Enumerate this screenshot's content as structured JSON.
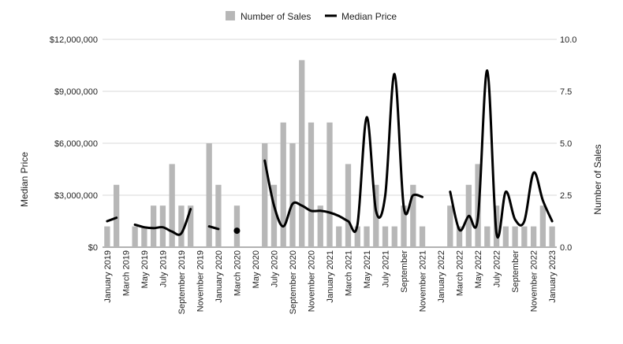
{
  "chart_data": {
    "type": "bar+line",
    "legend": {
      "placement": "top-center",
      "items": [
        {
          "label": "Number of Sales",
          "color": "#b7b7b7",
          "kind": "bar"
        },
        {
          "label": "Median Price",
          "color": "#000000",
          "kind": "line"
        }
      ]
    },
    "y_left": {
      "label": "Median Price",
      "range": [
        0,
        12000000
      ],
      "ticks": [
        0,
        3000000,
        6000000,
        9000000,
        12000000
      ],
      "tick_labels": [
        "$0",
        "$3,000,000",
        "$6,000,000",
        "$9,000,000",
        "$12,000,000"
      ]
    },
    "y_right": {
      "label": "Number of Sales",
      "range": [
        0,
        10
      ],
      "ticks": [
        0,
        2.5,
        5,
        7.5,
        10
      ],
      "tick_labels": [
        "0.0",
        "2.5",
        "5.0",
        "7.5",
        "10.0"
      ]
    },
    "grid": true,
    "categories": [
      "2019-01",
      "2019-02",
      "2019-03",
      "2019-04",
      "2019-05",
      "2019-06",
      "2019-07",
      "2019-08",
      "2019-09",
      "2019-10",
      "2019-11",
      "2019-12",
      "2020-01",
      "2020-02",
      "2020-03",
      "2020-04",
      "2020-05",
      "2020-06",
      "2020-07",
      "2020-08",
      "2020-09",
      "2020-10",
      "2020-11",
      "2020-12",
      "2021-01",
      "2021-02",
      "2021-03",
      "2021-04",
      "2021-05",
      "2021-06",
      "2021-07",
      "2021-08",
      "2021-09",
      "2021-10",
      "2021-11",
      "2021-12",
      "2022-01",
      "2022-02",
      "2022-03",
      "2022-04",
      "2022-05",
      "2022-06",
      "2022-07",
      "2022-08",
      "2022-09",
      "2022-10",
      "2022-11",
      "2022-12",
      "2023-01"
    ],
    "x_tick_labels": [
      "January 2019",
      "March 2019",
      "May 2019",
      "July 2019",
      "September 2019",
      "November 2019",
      "January 2020",
      "March 2020",
      "May 2020",
      "July 2020",
      "September 2020",
      "November 2020",
      "January 2021",
      "March 2021",
      "May 2021",
      "July 2021",
      "September",
      "November 2021",
      "January 2022",
      "March 2022",
      "May 2022",
      "July 2022",
      "September",
      "November 2022",
      "January 2023"
    ],
    "series": [
      {
        "name": "Number of Sales",
        "axis": "right",
        "type": "bar",
        "values": [
          1,
          3,
          0,
          1,
          1,
          2,
          2,
          4,
          2,
          2,
          0,
          5,
          3,
          0,
          2,
          0,
          0,
          5,
          3,
          6,
          5,
          9,
          6,
          2,
          6,
          1,
          4,
          1,
          1,
          3,
          1,
          1,
          2,
          3,
          1,
          0,
          0,
          2,
          1,
          3,
          4,
          1,
          2,
          1,
          1,
          1,
          1,
          2,
          1
        ]
      },
      {
        "name": "Median Price",
        "axis": "left",
        "type": "line",
        "values": [
          1500000,
          1700000,
          null,
          1300000,
          1150000,
          1100000,
          1150000,
          900000,
          800000,
          2200000,
          null,
          1200000,
          1050000,
          null,
          950000,
          null,
          null,
          5000000,
          2400000,
          1200000,
          2500000,
          2400000,
          2100000,
          2100000,
          2000000,
          1800000,
          1500000,
          1300000,
          7500000,
          2100000,
          3000000,
          10000000,
          2300000,
          3000000,
          2900000,
          null,
          null,
          3200000,
          1000000,
          1800000,
          1700000,
          10200000,
          800000,
          3200000,
          1600000,
          1500000,
          4300000,
          2700000,
          1500000
        ]
      }
    ]
  }
}
